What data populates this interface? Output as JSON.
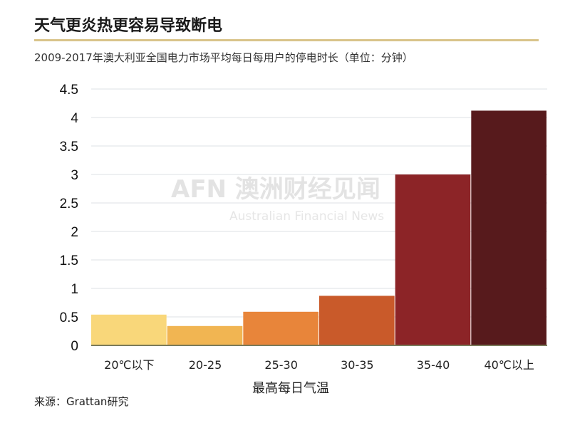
{
  "chart_data": {
    "type": "bar",
    "title": "天气更炎热更容易导致断电",
    "subtitle": "2009-2017年澳大利亚全国电力市场平均每日每用户的停电时长（单位：分钟）",
    "xlabel": "最高每日气温",
    "ylabel": "",
    "categories": [
      "20℃以下",
      "20-25",
      "25-30",
      "30-35",
      "35-40",
      "40℃以上"
    ],
    "values": [
      0.54,
      0.34,
      0.59,
      0.87,
      3.0,
      4.12
    ],
    "colors": [
      "#f9d77a",
      "#f1b552",
      "#e8853a",
      "#c95a2a",
      "#8c2427",
      "#571a1c"
    ],
    "ylim": [
      0,
      4.5
    ],
    "yticks": [
      0,
      0.5,
      1,
      1.5,
      2,
      2.5,
      3,
      3.5,
      4,
      4.5
    ],
    "ytick_labels": [
      "0",
      "0.5",
      "1",
      "1.5",
      "2",
      "2.5",
      "3",
      "3.5",
      "4",
      "4.5"
    ],
    "grid": true,
    "source": "来源：Grattan研究"
  },
  "watermark": {
    "logo": "AFN 澳洲财经见闻",
    "sub": "Australian Financial News"
  }
}
